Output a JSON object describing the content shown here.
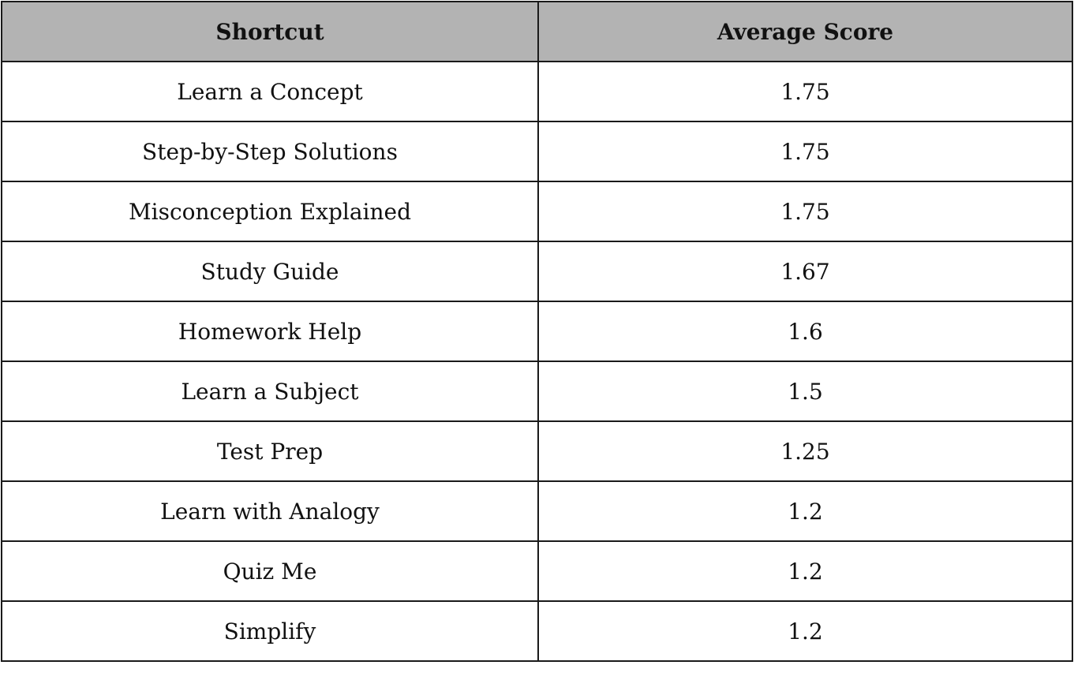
{
  "table": {
    "headers": {
      "shortcut": "Shortcut",
      "score": "Average Score"
    },
    "rows": [
      {
        "shortcut": "Learn a Concept",
        "score": "1.75"
      },
      {
        "shortcut": "Step-by-Step Solutions",
        "score": "1.75"
      },
      {
        "shortcut": "Misconception Explained",
        "score": "1.75"
      },
      {
        "shortcut": "Study Guide",
        "score": "1.67"
      },
      {
        "shortcut": "Homework Help",
        "score": "1.6"
      },
      {
        "shortcut": "Learn a Subject",
        "score": "1.5"
      },
      {
        "shortcut": "Test Prep",
        "score": "1.25"
      },
      {
        "shortcut": "Learn with Analogy",
        "score": "1.2"
      },
      {
        "shortcut": "Quiz Me",
        "score": "1.2"
      },
      {
        "shortcut": "Simplify",
        "score": "1.2"
      }
    ],
    "header_background": "#b3b3b3"
  }
}
